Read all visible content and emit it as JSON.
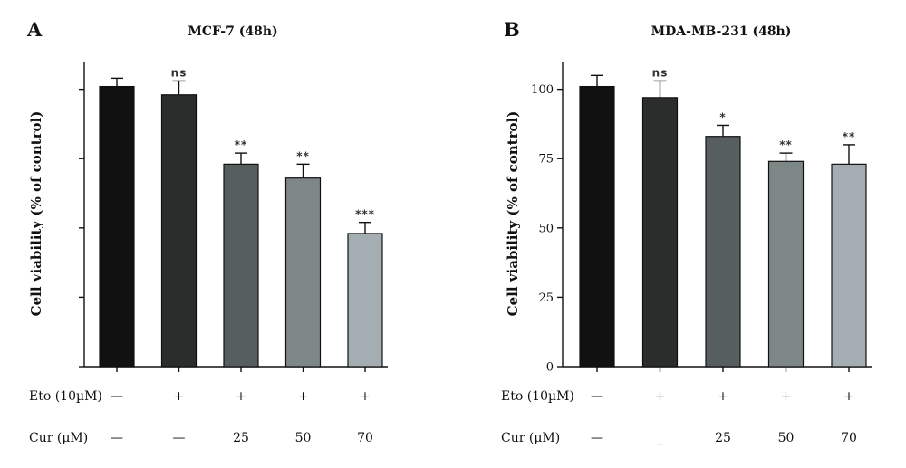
{
  "chart_data": [
    {
      "type": "bar",
      "panel": "A",
      "title": "MCF-7 (48h)",
      "ylabel": "Cell viability (% of control)",
      "ylim": [
        0,
        110
      ],
      "yticks": [
        0,
        25,
        50,
        75,
        100
      ],
      "show_ytick_labels": false,
      "values": [
        101,
        98,
        73,
        68,
        48
      ],
      "errors": [
        3,
        5,
        4,
        5,
        4
      ],
      "significance": [
        "",
        "ns",
        "**",
        "**",
        "***"
      ],
      "colors": [
        "#111111",
        "#2b2d2c",
        "#565f5e",
        "#7d8786",
        "#a4adb1"
      ],
      "conditions": {
        "rows": [
          {
            "label": "Eto (10µM)",
            "cells": [
              "—",
              "+",
              "+",
              "+",
              "+"
            ]
          },
          {
            "label": "Cur (µM)",
            "cells": [
              "—",
              "—",
              "25",
              "50",
              "70"
            ]
          }
        ]
      }
    },
    {
      "type": "bar",
      "panel": "B",
      "title": "MDA-MB-231 (48h)",
      "ylabel": "Cell viability (% of control)",
      "ylim": [
        0,
        110
      ],
      "yticks": [
        0,
        25,
        50,
        75,
        100
      ],
      "show_ytick_labels": true,
      "values": [
        101,
        97,
        83,
        74,
        73
      ],
      "errors": [
        4,
        6,
        4,
        3,
        7
      ],
      "significance": [
        "",
        "ns",
        "*",
        "**",
        "**"
      ],
      "colors": [
        "#111111",
        "#2b2d2c",
        "#565f5e",
        "#7d8786",
        "#a4adb1"
      ],
      "conditions": {
        "rows": [
          {
            "label": "Eto (10µM)",
            "cells": [
              "—",
              "+",
              "+",
              "+",
              "+"
            ]
          },
          {
            "label": "Cur (µM)",
            "cells": [
              "—",
              "_",
              "25",
              "50",
              "70"
            ]
          }
        ]
      }
    }
  ]
}
